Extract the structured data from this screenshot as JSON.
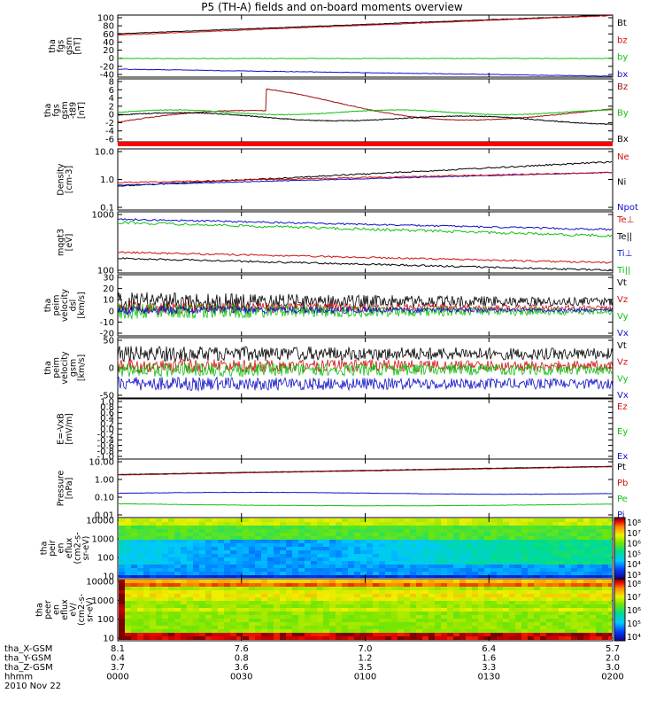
{
  "title": "P5 (TH-A) fields and on-board moments overview",
  "colors": {
    "black": "#000000",
    "red": "#d01010",
    "green": "#10c010",
    "blue": "#1010c8",
    "darkred": "#a01010"
  },
  "chart_data": [
    {
      "type": "line",
      "panel": "fgs",
      "ylabel": [
        "tha",
        "fgs",
        "gsm",
        "[nT]"
      ],
      "ylim": [
        -40,
        100
      ],
      "yticks": [
        "100",
        "80",
        "60",
        "40",
        "20",
        "0",
        "-20",
        "-40"
      ],
      "series": [
        {
          "name": "Bt",
          "color": "black",
          "start": 58,
          "end": 100
        },
        {
          "name": "bz",
          "color": "red",
          "start": 55,
          "end": 99
        },
        {
          "name": "by",
          "color": "green",
          "start": 2,
          "end": 2
        },
        {
          "name": "bx",
          "color": "blue",
          "start": -22,
          "end": -38
        }
      ]
    },
    {
      "type": "line",
      "panel": "fgs-t89",
      "ylabel": [
        "tha",
        "fgs",
        "gsm",
        "-t89",
        "[nT]"
      ],
      "ylim": [
        -8,
        8
      ],
      "yticks": [
        "8",
        "6",
        "4",
        "2",
        "0",
        "-2",
        "-4",
        "-6"
      ],
      "series": [
        {
          "name": "Bz",
          "color": "darkred"
        },
        {
          "name": "By",
          "color": "green"
        },
        {
          "name": "Bx",
          "color": "black"
        }
      ]
    },
    {
      "type": "line",
      "panel": "density",
      "ylabel": [
        "Density",
        "[cm-3]"
      ],
      "log": true,
      "yticks": [
        "10.0",
        "1.0",
        "0.1"
      ],
      "series": [
        {
          "name": "Ne",
          "color": "red"
        },
        {
          "name": "Ni",
          "color": "black"
        },
        {
          "name": "Npot",
          "color": "blue"
        }
      ]
    },
    {
      "type": "line",
      "panel": "temperature",
      "ylabel": [
        "mqgt3",
        "[eV]"
      ],
      "log": true,
      "yticks": [
        "1000",
        "100"
      ],
      "series": [
        {
          "name": "Te⊥",
          "color": "red"
        },
        {
          "name": "Te||",
          "color": "black"
        },
        {
          "name": "Ti⊥",
          "color": "blue"
        },
        {
          "name": "Ti||",
          "color": "green"
        }
      ]
    },
    {
      "type": "line",
      "panel": "peim-velocity",
      "ylabel": [
        "tha",
        "peim",
        "velocity",
        "dsl",
        "[km/s]"
      ],
      "ylim": [
        -20,
        30
      ],
      "yticks": [
        "30",
        "20",
        "10",
        "0",
        "-10",
        "-20"
      ],
      "series": [
        {
          "name": "Vt",
          "color": "black"
        },
        {
          "name": "Vz",
          "color": "red"
        },
        {
          "name": "Vy",
          "color": "green"
        },
        {
          "name": "Vx",
          "color": "blue"
        }
      ]
    },
    {
      "type": "line",
      "panel": "peim-velocity-gsm",
      "ylabel": [
        "tha",
        "peim",
        "velocity",
        "gsm",
        "[km/s]"
      ],
      "ylim": [
        -50,
        100
      ],
      "yticks": [
        "50",
        "0",
        "-50"
      ],
      "series": [
        {
          "name": "Vt",
          "color": "black"
        },
        {
          "name": "Vz",
          "color": "red"
        },
        {
          "name": "Vy",
          "color": "green"
        },
        {
          "name": "Vx",
          "color": "blue"
        }
      ]
    },
    {
      "type": "line",
      "panel": "efield",
      "ylabel": [
        "E=-VxB",
        "[mV/m]"
      ],
      "ylim": [
        -1,
        1
      ],
      "yticks": [
        "1.0",
        "0.8",
        "0.6",
        "0.4",
        "0.2",
        "0.0",
        "-0.2",
        "-0.4",
        "-0.6",
        "-0.8",
        "-1.0"
      ],
      "series": [
        {
          "name": "Ez",
          "color": "red"
        },
        {
          "name": "Ey",
          "color": "green"
        },
        {
          "name": "Ex",
          "color": "blue"
        }
      ]
    },
    {
      "type": "line",
      "panel": "pressure",
      "ylabel": [
        "Pressure",
        "[nPa]"
      ],
      "log": true,
      "yticks": [
        "10.00",
        "1.00",
        "0.10",
        "0.01"
      ],
      "series": [
        {
          "name": "Pt",
          "color": "black"
        },
        {
          "name": "Pb",
          "color": "red"
        },
        {
          "name": "Pe",
          "color": "green"
        },
        {
          "name": "Pi",
          "color": "blue"
        }
      ]
    },
    {
      "type": "heatmap",
      "panel": "peir",
      "ylabel": [
        "tha",
        "peir",
        "en",
        "eflux",
        "(cm2-s-",
        "sr-eV)"
      ],
      "yticks": [
        "10000",
        "1000",
        "100",
        "10"
      ],
      "colorbar": [
        "10⁸",
        "10⁷",
        "10⁶",
        "10⁵",
        "10⁴",
        "10³"
      ]
    },
    {
      "type": "heatmap",
      "panel": "peer",
      "ylabel": [
        "tha",
        "peer",
        "en",
        "eflux",
        "eV/",
        "(cm2-s-",
        "sr-eV)"
      ],
      "yticks": [
        "10000",
        "1000",
        "100",
        "10"
      ],
      "colorbar": [
        "10⁸",
        "10⁷",
        "10⁶",
        "10⁵",
        "10⁴"
      ]
    }
  ],
  "xaxis": {
    "rows": [
      {
        "label": "tha_X-GSM",
        "values": [
          "8.1",
          "7.6",
          "7.0",
          "6.4",
          "5.7"
        ]
      },
      {
        "label": "tha_Y-GSM",
        "values": [
          "0.4",
          "0.8",
          "1.2",
          "1.6",
          "2.0"
        ]
      },
      {
        "label": "tha_Z-GSM",
        "values": [
          "3.7",
          "3.6",
          "3.5",
          "3.3",
          "3.0"
        ]
      },
      {
        "label": "hhmm",
        "values": [
          "0000",
          "0030",
          "0100",
          "0130",
          "0200"
        ]
      }
    ],
    "date": "2010 Nov 22"
  }
}
